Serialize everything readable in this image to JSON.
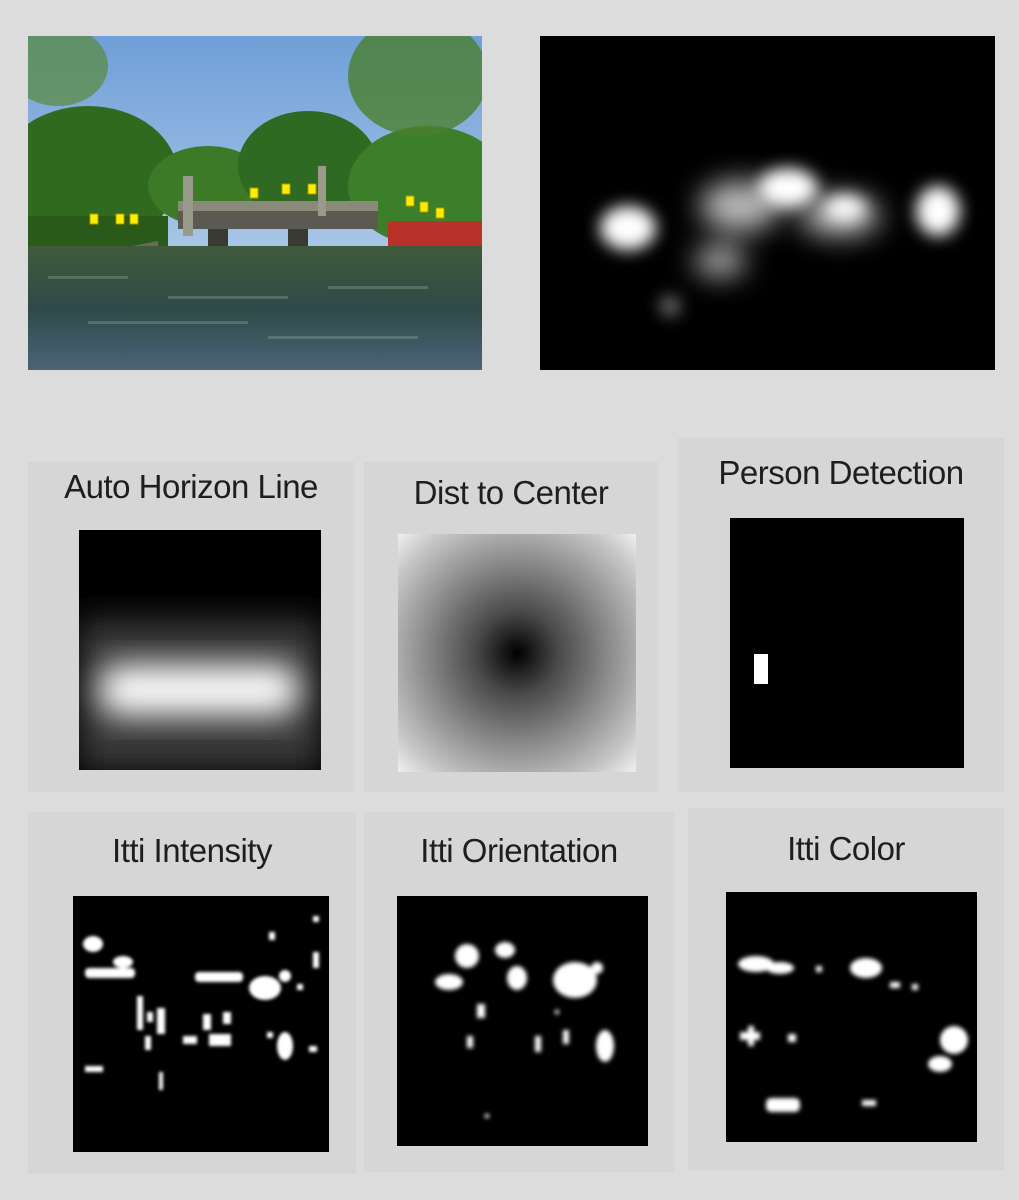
{
  "figure": {
    "source_photo": {
      "description_icon": "photo-icon"
    },
    "saliency_map": {
      "description_icon": "heatmap-icon"
    },
    "features": [
      {
        "key": "auto_horizon",
        "title": "Auto Horizon Line"
      },
      {
        "key": "dist_center",
        "title": "Dist to Center"
      },
      {
        "key": "person_detection",
        "title": "Person Detection"
      },
      {
        "key": "itti_intensity",
        "title": "Itti Intensity"
      },
      {
        "key": "itti_orientation",
        "title": "Itti Orientation"
      },
      {
        "key": "itti_color",
        "title": "Itti Color"
      }
    ]
  },
  "colors": {
    "background": "#dcdcdc",
    "panel": "#d6d6d6",
    "map_bg": "#000000",
    "marker": "#ffee00"
  }
}
